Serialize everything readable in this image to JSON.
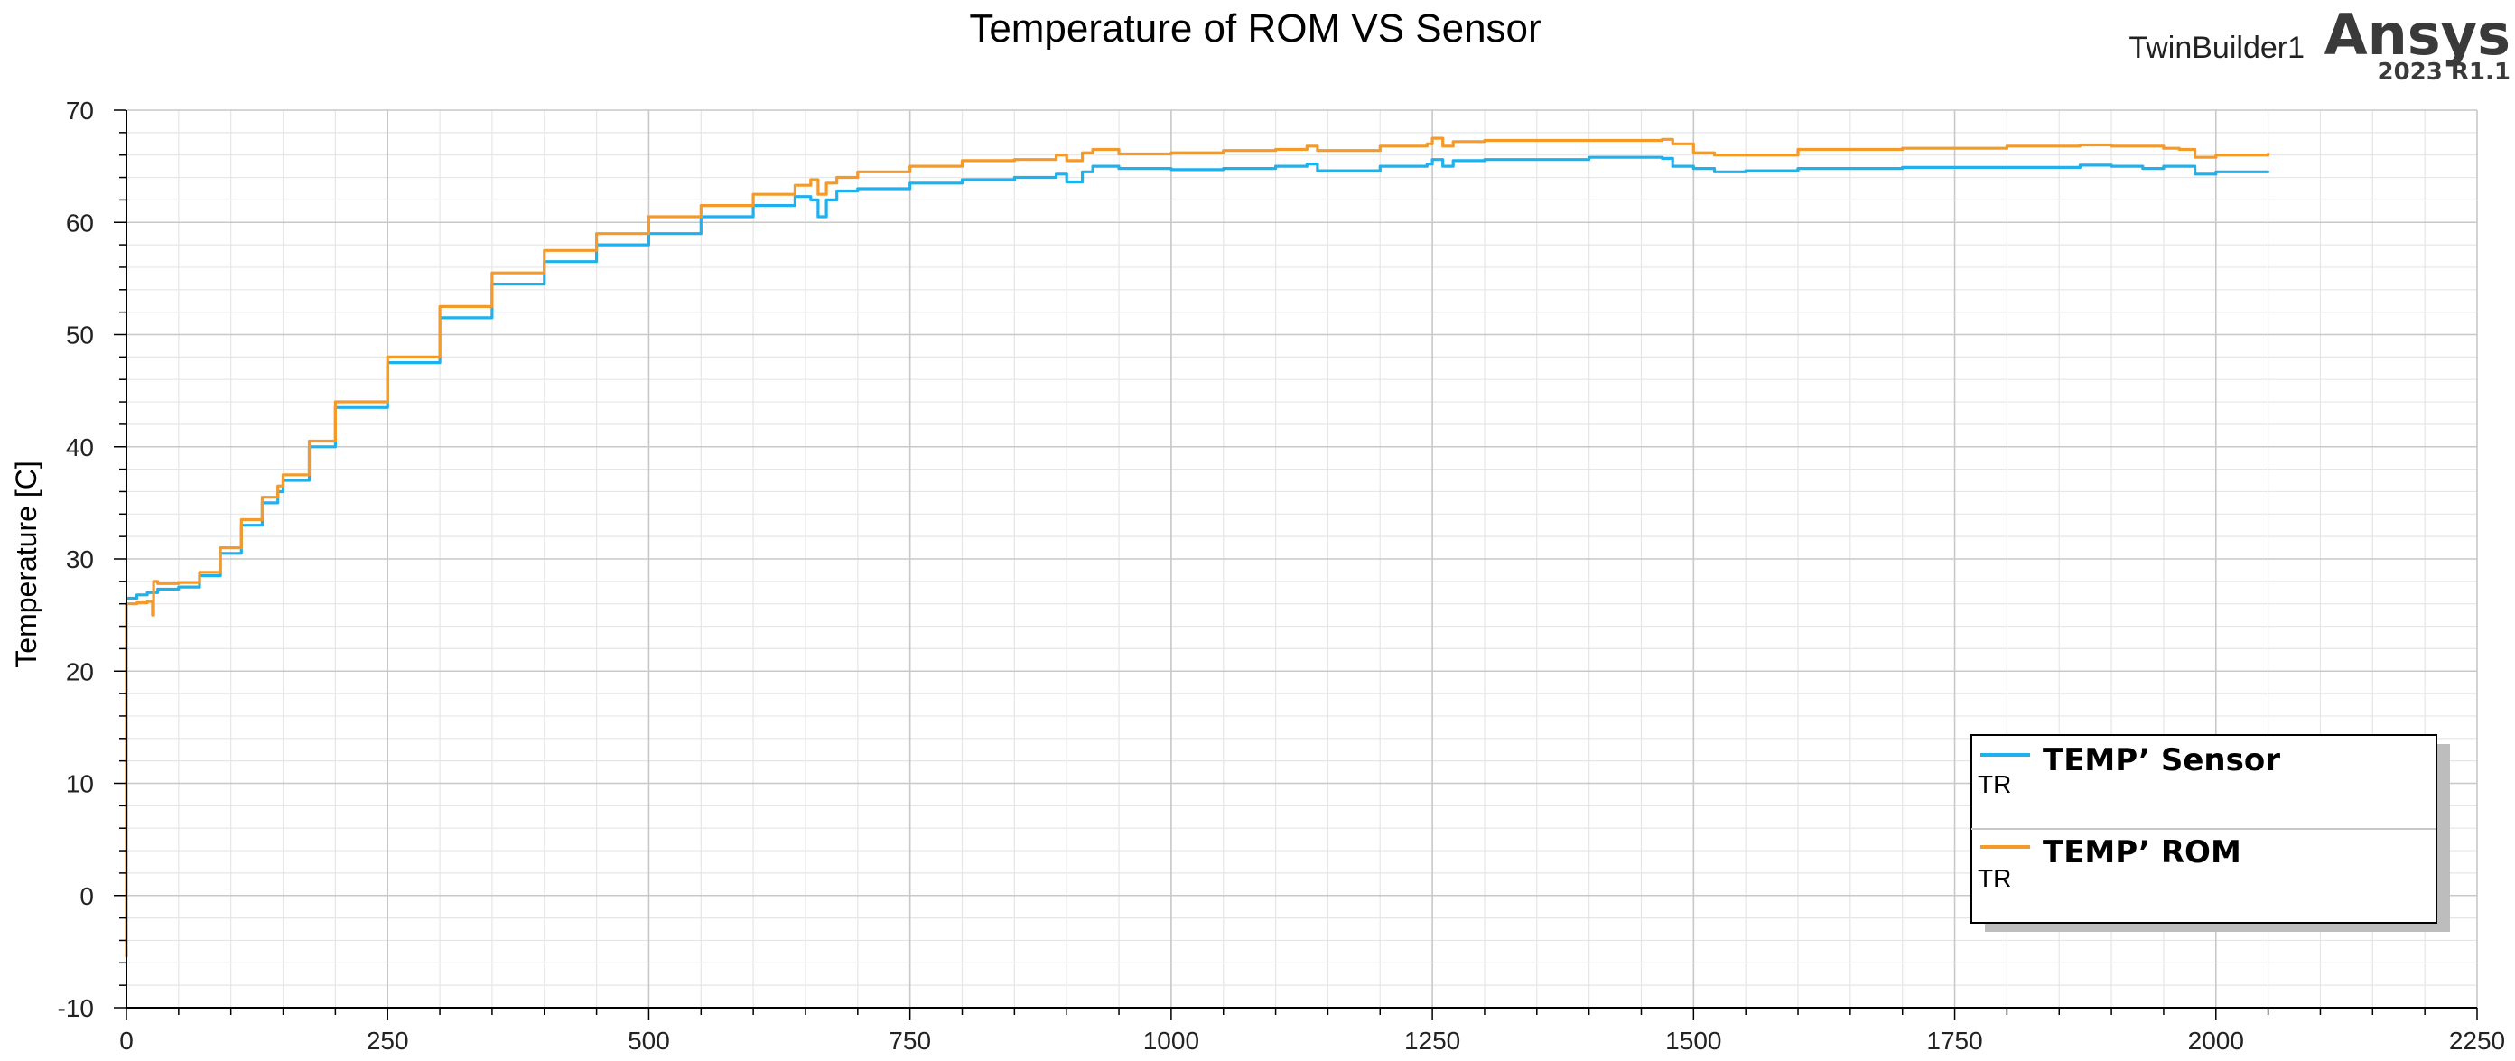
{
  "header": {
    "design_name": "TwinBuilder1",
    "brand": "Ansys",
    "version": "2023 R1.1"
  },
  "colors": {
    "sensor": "#1fb1ee",
    "rom": "#f39a2b",
    "grid_major": "#c8c8c8",
    "grid_minor": "#e6e6e6",
    "axis": "#000000"
  },
  "chart_data": {
    "type": "line",
    "title": "Temperature of ROM VS Sensor",
    "xlabel": "",
    "ylabel": "Temperature [C]",
    "xlim": [
      0,
      2250
    ],
    "ylim": [
      -10,
      70
    ],
    "x_ticks": [
      0,
      250,
      500,
      750,
      1000,
      1250,
      1500,
      1750,
      2000,
      2250
    ],
    "y_ticks": [
      -10,
      0,
      10,
      20,
      30,
      40,
      50,
      60,
      70
    ],
    "grid": true,
    "legend_position": "bottom-right",
    "series": [
      {
        "name": "TEMP’ Sensor",
        "sublabel": "TR",
        "color": "#1fb1ee",
        "x": [
          0,
          10,
          20,
          30,
          50,
          70,
          90,
          110,
          130,
          145,
          150,
          175,
          200,
          250,
          300,
          350,
          400,
          450,
          500,
          550,
          600,
          640,
          655,
          662,
          670,
          680,
          700,
          750,
          800,
          850,
          890,
          900,
          915,
          925,
          950,
          1000,
          1050,
          1100,
          1130,
          1140,
          1200,
          1245,
          1250,
          1260,
          1270,
          1300,
          1400,
          1470,
          1480,
          1500,
          1520,
          1550,
          1600,
          1700,
          1800,
          1870,
          1900,
          1930,
          1950,
          1965,
          1980,
          2000,
          2050
        ],
        "y": [
          26.5,
          26.8,
          27.0,
          27.3,
          27.5,
          28.5,
          30.5,
          33.0,
          35.0,
          36.0,
          37.0,
          40.0,
          43.5,
          47.5,
          51.5,
          54.5,
          56.5,
          58.0,
          59.0,
          60.5,
          61.5,
          62.3,
          62.0,
          60.5,
          62.0,
          62.8,
          63.0,
          63.5,
          63.8,
          64.0,
          64.3,
          63.6,
          64.5,
          65.0,
          64.8,
          64.7,
          64.8,
          65.0,
          65.2,
          64.6,
          65.0,
          65.2,
          65.6,
          65.0,
          65.5,
          65.6,
          65.8,
          65.7,
          65.0,
          64.8,
          64.5,
          64.6,
          64.8,
          64.9,
          64.9,
          65.1,
          65.0,
          64.8,
          65.0,
          65.0,
          64.3,
          64.5,
          64.6
        ]
      },
      {
        "name": "TEMP’ ROM",
        "sublabel": "TR",
        "color": "#f39a2b",
        "x": [
          0,
          0.001,
          2,
          10,
          20,
          24,
          25,
          26,
          30,
          50,
          70,
          90,
          110,
          130,
          145,
          150,
          175,
          200,
          250,
          300,
          350,
          400,
          450,
          500,
          550,
          600,
          640,
          655,
          662,
          670,
          680,
          700,
          750,
          800,
          850,
          890,
          900,
          915,
          925,
          950,
          1000,
          1050,
          1100,
          1130,
          1140,
          1200,
          1245,
          1250,
          1260,
          1270,
          1300,
          1400,
          1470,
          1480,
          1500,
          1520,
          1550,
          1600,
          1700,
          1800,
          1870,
          1900,
          1930,
          1950,
          1965,
          1980,
          2000,
          2050
        ],
        "y": [
          -5.5,
          26.0,
          26.0,
          26.1,
          26.2,
          26.2,
          25.0,
          28.0,
          27.8,
          27.9,
          28.8,
          31.0,
          33.5,
          35.5,
          36.5,
          37.5,
          40.5,
          44.0,
          48.0,
          52.5,
          55.5,
          57.5,
          59.0,
          60.5,
          61.5,
          62.5,
          63.3,
          63.8,
          62.5,
          63.5,
          64.0,
          64.5,
          65.0,
          65.5,
          65.6,
          66.0,
          65.5,
          66.2,
          66.5,
          66.1,
          66.2,
          66.4,
          66.5,
          66.8,
          66.4,
          66.8,
          67.0,
          67.5,
          66.8,
          67.2,
          67.3,
          67.3,
          67.4,
          67.0,
          66.2,
          66.0,
          66.0,
          66.5,
          66.6,
          66.8,
          66.9,
          66.8,
          66.8,
          66.6,
          66.5,
          65.8,
          66.0,
          66.2
        ]
      }
    ]
  }
}
